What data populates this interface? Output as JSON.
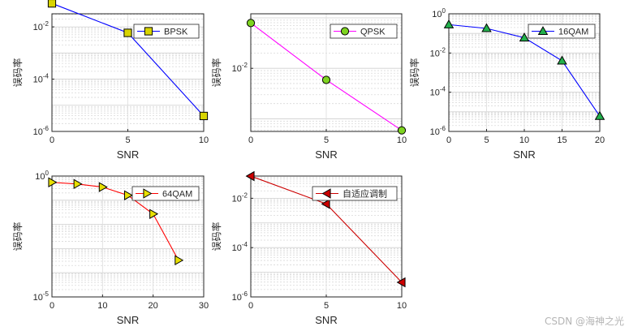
{
  "watermark": "CSDN @海神之光",
  "chart_data": [
    {
      "type": "line",
      "yscale": "log",
      "xlabel": "SNR",
      "ylabel": "误码率",
      "xlim": [
        0,
        10
      ],
      "xticks": [
        0,
        5,
        10
      ],
      "ylim_exp": [
        -6,
        -1.5
      ],
      "ytick_exps": [
        -2,
        -4,
        -6
      ],
      "legend": "BPSK",
      "legend_position": "top-right",
      "series": [
        {
          "name": "BPSK",
          "x": [
            0,
            5,
            10
          ],
          "y": [
            0.079,
            0.0059,
            3.9e-06
          ]
        }
      ],
      "color": "#0000ff",
      "marker": "square",
      "marker_fill": "#d8d400"
    },
    {
      "type": "line",
      "yscale": "log",
      "xlabel": "SNR",
      "ylabel": "误码率",
      "xlim": [
        0,
        10
      ],
      "xticks": [
        0,
        5,
        10
      ],
      "ylim_exp": [
        -3.25,
        -0.92
      ],
      "ytick_exps": [
        -2
      ],
      "legend": "QPSK",
      "legend_position": "top-right",
      "series": [
        {
          "name": "QPSK",
          "x": [
            0,
            5,
            10
          ],
          "y": [
            0.079,
            0.0059,
            0.00059
          ]
        }
      ],
      "color": "#ff00ff",
      "marker": "circle",
      "marker_fill": "#7ed320"
    },
    {
      "type": "line",
      "yscale": "log",
      "xlabel": "SNR",
      "ylabel": "误码率",
      "xlim": [
        0,
        20
      ],
      "xticks": [
        0,
        5,
        10,
        15,
        20
      ],
      "ylim_exp": [
        -6,
        0
      ],
      "ytick_exps": [
        0,
        -2,
        -4,
        -6
      ],
      "legend": "16QAM",
      "legend_position": "top-right",
      "series": [
        {
          "name": "16QAM",
          "x": [
            0,
            5,
            10,
            15,
            20
          ],
          "y": [
            0.28,
            0.18,
            0.06,
            0.004,
            6e-06
          ]
        }
      ],
      "color": "#0000ff",
      "marker": "triangle-up",
      "marker_fill": "#22b14c"
    },
    {
      "type": "line",
      "yscale": "log",
      "xlabel": "SNR",
      "ylabel": "误码率",
      "xlim": [
        0,
        30
      ],
      "xticks": [
        0,
        10,
        20,
        30
      ],
      "ylim_exp": [
        -5,
        0
      ],
      "ytick_exps": [
        0,
        -5
      ],
      "ytick_labels": [
        "10^0",
        "10^-5"
      ],
      "legend": "64QAM",
      "legend_position": "top-right",
      "series": [
        {
          "name": "64QAM",
          "x": [
            0,
            5,
            10,
            15,
            20,
            25
          ],
          "y": [
            0.55,
            0.47,
            0.35,
            0.16,
            0.027,
            0.00033
          ]
        }
      ],
      "color": "#ff0000",
      "marker": "triangle-right",
      "marker_fill": "#e8e000"
    },
    {
      "type": "line",
      "yscale": "log",
      "xlabel": "SNR",
      "ylabel": "误码率",
      "xlim": [
        0,
        10
      ],
      "xticks": [
        0,
        5,
        10
      ],
      "ylim_exp": [
        -6,
        -1.1
      ],
      "ytick_exps": [
        -2,
        -4,
        -6
      ],
      "legend": "自适应调制",
      "legend_position": "top-right",
      "series": [
        {
          "name": "自适应调制",
          "x": [
            0,
            5,
            10
          ],
          "y": [
            0.079,
            0.0059,
            3.9e-06
          ]
        }
      ],
      "color": "#cc0000",
      "marker": "triangle-left",
      "marker_fill": "#cc0000"
    }
  ]
}
